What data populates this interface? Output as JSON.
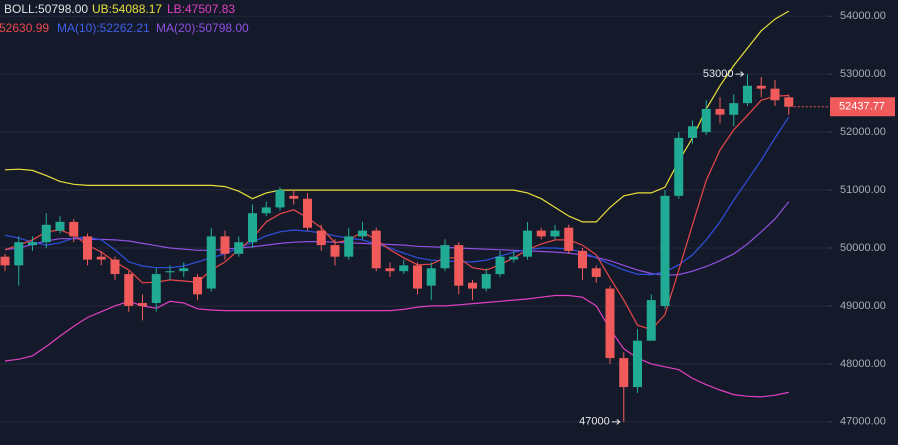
{
  "chart_data": {
    "type": "candlestick",
    "header": {
      "boll": "BOLL:50798.00",
      "ub": "UB:54088.17",
      "lb": "LB:47507.83",
      "ma5": "52630.99",
      "ma10": "MA(10):52262.21",
      "ma20": "MA(20):50798.00"
    },
    "ylim": [
      46600,
      54280
    ],
    "yticks": [
      {
        "value": 47000,
        "label": "47000.00"
      },
      {
        "value": 48000,
        "label": "48000.00"
      },
      {
        "value": 49000,
        "label": "49000.00"
      },
      {
        "value": 50000,
        "label": "50000.00"
      },
      {
        "value": 51000,
        "label": "51000.00"
      },
      {
        "value": 52000,
        "label": "52000.00"
      },
      {
        "value": 53000,
        "label": "53000.00"
      },
      {
        "value": 54000,
        "label": "54000.00"
      }
    ],
    "grid": true,
    "up_color": "#22ab94",
    "down_color": "#f05a5a",
    "candles": {
      "open": [
        49850,
        49700,
        50050,
        50100,
        50300,
        50450,
        50200,
        49850,
        49800,
        49550,
        49050,
        49050,
        49580,
        49600,
        49500,
        49300,
        50200,
        49900,
        50100,
        50600,
        50700,
        50900,
        50850,
        50300,
        50050,
        49850,
        50200,
        50300,
        49650,
        49600,
        49700,
        49350,
        49650,
        50050,
        49400,
        49300,
        49550,
        49800,
        49850,
        50300,
        50200,
        50350,
        49950,
        49650,
        49300,
        48100,
        47600,
        48400,
        49000,
        50900,
        51900,
        52000,
        52400,
        52300,
        52500,
        52800,
        52750,
        52600
      ],
      "high": [
        49900,
        50200,
        50200,
        50600,
        50550,
        50500,
        50250,
        49950,
        49850,
        49600,
        49200,
        49650,
        49700,
        49750,
        49550,
        50350,
        50300,
        50200,
        50750,
        50800,
        51050,
        51000,
        50950,
        50400,
        50150,
        50350,
        50450,
        50350,
        49750,
        49800,
        49750,
        49750,
        50150,
        50100,
        49450,
        49650,
        49950,
        49950,
        50450,
        50350,
        50400,
        50400,
        50000,
        49700,
        49350,
        48200,
        48600,
        49200,
        51000,
        52000,
        52200,
        52550,
        52600,
        52650,
        53000,
        52950,
        52900,
        52650
      ],
      "low": [
        49600,
        49350,
        49950,
        50000,
        50250,
        50100,
        49700,
        49700,
        49450,
        48900,
        48750,
        48900,
        49450,
        49500,
        49100,
        49250,
        49800,
        49850,
        50000,
        50550,
        50650,
        50750,
        50300,
        49950,
        49700,
        49800,
        50150,
        49600,
        49500,
        49550,
        49200,
        49100,
        49600,
        49200,
        49100,
        49250,
        49500,
        49750,
        49800,
        50150,
        50150,
        49900,
        49450,
        49400,
        48000,
        47000,
        47500,
        48500,
        48950,
        50850,
        51800,
        51950,
        52150,
        52100,
        52450,
        52600,
        52450,
        52300
      ],
      "close": [
        49700,
        50100,
        50100,
        50400,
        50450,
        50200,
        49800,
        49800,
        49550,
        49000,
        49000,
        49550,
        49600,
        49650,
        49200,
        50200,
        49900,
        50100,
        50600,
        50700,
        51000,
        50850,
        50350,
        50050,
        49850,
        50200,
        50300,
        49650,
        49600,
        49700,
        49300,
        49650,
        50050,
        49350,
        49300,
        49550,
        49850,
        49850,
        50300,
        50200,
        50300,
        49950,
        49650,
        49500,
        48100,
        47600,
        48400,
        49100,
        50900,
        51900,
        52100,
        52400,
        52300,
        52500,
        52800,
        52750,
        52550,
        52437.77
      ]
    },
    "series": [
      {
        "name": "UB",
        "color": "#e6e03a",
        "values": [
          51350,
          51360,
          51340,
          51250,
          51150,
          51100,
          51080,
          51080,
          51080,
          51080,
          51080,
          51080,
          51080,
          51080,
          51080,
          51080,
          51060,
          50980,
          50850,
          50950,
          51000,
          51000,
          51000,
          51000,
          51000,
          51000,
          51000,
          51000,
          51000,
          51000,
          51000,
          51000,
          51000,
          51000,
          51000,
          51000,
          51000,
          51000,
          50950,
          50850,
          50700,
          50550,
          50450,
          50450,
          50700,
          50900,
          50950,
          50950,
          51050,
          51500,
          51900,
          52400,
          52800,
          53150,
          53450,
          53750,
          53950,
          54088.17
        ]
      },
      {
        "name": "LB",
        "color": "#e040c0",
        "values": [
          48050,
          48080,
          48140,
          48300,
          48480,
          48650,
          48800,
          48900,
          49000,
          49080,
          49000,
          48960,
          49080,
          49050,
          48950,
          48930,
          48920,
          48920,
          48920,
          48920,
          48920,
          48920,
          48920,
          48920,
          48920,
          48920,
          48920,
          48920,
          48920,
          48940,
          48980,
          49000,
          49000,
          49020,
          49040,
          49060,
          49080,
          49100,
          49120,
          49150,
          49180,
          49180,
          49150,
          49000,
          48600,
          48260,
          48100,
          48000,
          47950,
          47900,
          47750,
          47640,
          47550,
          47470,
          47440,
          47430,
          47460,
          47507.83
        ]
      },
      {
        "name": "MA(20)",
        "color": "#9050e0",
        "values": [
          49970,
          50000,
          50060,
          50120,
          50160,
          50160,
          50150,
          50150,
          50140,
          50120,
          50080,
          50040,
          50000,
          49980,
          49960,
          49960,
          49980,
          50000,
          50020,
          50050,
          50080,
          50100,
          50110,
          50110,
          50100,
          50090,
          50080,
          50070,
          50060,
          50050,
          50030,
          50020,
          50010,
          50000,
          49990,
          49980,
          49970,
          49960,
          49950,
          49940,
          49930,
          49910,
          49880,
          49840,
          49780,
          49700,
          49620,
          49560,
          49530,
          49540,
          49600,
          49680,
          49780,
          49900,
          50070,
          50280,
          50500,
          50798
        ]
      },
      {
        "name": "MA(10)",
        "color": "#3050e0",
        "values": [
          50220,
          50170,
          50100,
          50050,
          50090,
          50170,
          50190,
          50140,
          49970,
          49760,
          49690,
          49660,
          49660,
          49690,
          49760,
          49830,
          49900,
          50000,
          50100,
          50210,
          50280,
          50310,
          50290,
          50260,
          50210,
          50170,
          50140,
          50070,
          50000,
          49910,
          49830,
          49790,
          49780,
          49760,
          49760,
          49790,
          49860,
          49930,
          49970,
          50000,
          50000,
          49980,
          49930,
          49830,
          49720,
          49620,
          49550,
          49540,
          49590,
          49710,
          49880,
          50140,
          50450,
          50830,
          51170,
          51520,
          51900,
          52262.21
        ]
      },
      {
        "name": "MA(5)",
        "color": "#e84848",
        "values": [
          49970,
          50050,
          50140,
          50280,
          50310,
          50220,
          50050,
          49930,
          49760,
          49620,
          49400,
          49410,
          49450,
          49430,
          49410,
          49620,
          49760,
          49970,
          50170,
          50450,
          50590,
          50660,
          50520,
          50350,
          50090,
          50140,
          50280,
          50140,
          49970,
          49830,
          49710,
          49720,
          49830,
          49830,
          49660,
          49620,
          49710,
          49830,
          49970,
          50070,
          50140,
          50140,
          50050,
          49880,
          49480,
          49100,
          48670,
          48590,
          48850,
          49620,
          50400,
          51170,
          51690,
          52040,
          52290,
          52550,
          52620,
          52630.99
        ]
      }
    ],
    "annotations": {
      "max_label": "53000",
      "min_label": "47000"
    },
    "last_price_label": "52437.77"
  }
}
